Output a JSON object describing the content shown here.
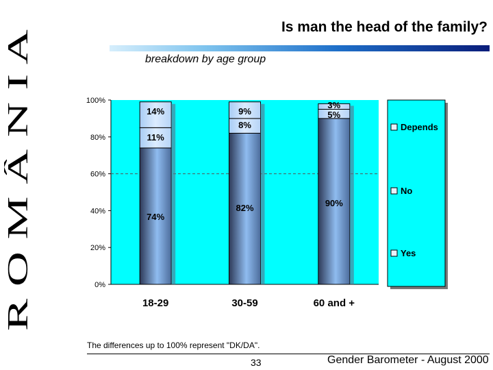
{
  "side_text": "R O M Â N I A",
  "header": {
    "title": "Is man the head of the family?",
    "subtitle": "breakdown by age group"
  },
  "chart_data": {
    "type": "bar",
    "stacked": true,
    "categories": [
      "18-29",
      "30-59",
      "60 and +"
    ],
    "series": [
      {
        "name": "Yes",
        "values": [
          74,
          82,
          90
        ],
        "labels": [
          "74%",
          "82%",
          "90%"
        ]
      },
      {
        "name": "No",
        "values": [
          11,
          8,
          5
        ],
        "labels": [
          "11%",
          "8%",
          "5%"
        ]
      },
      {
        "name": "Depends",
        "values": [
          14,
          9,
          3
        ],
        "labels": [
          "14%",
          "9%",
          "3%"
        ]
      }
    ],
    "yticks": [
      "0%",
      "20%",
      "40%",
      "60%",
      "80%",
      "100%"
    ],
    "ylim": [
      0,
      100
    ],
    "reference_line": 60,
    "legend": [
      "Depends",
      "No",
      "Yes"
    ],
    "legend_position": "right",
    "colors": {
      "plot_bg": "#00ffff",
      "legend_bg": "#00ffff",
      "bar_light": "#c9e3ff",
      "bar_mid": "#8fbcf0",
      "bar_dark": "#3a4a6a"
    }
  },
  "footer": {
    "note": "The differences up to 100% represent \"DK/DA\".",
    "page": "33",
    "source": "Gender Barometer - August 2000"
  }
}
